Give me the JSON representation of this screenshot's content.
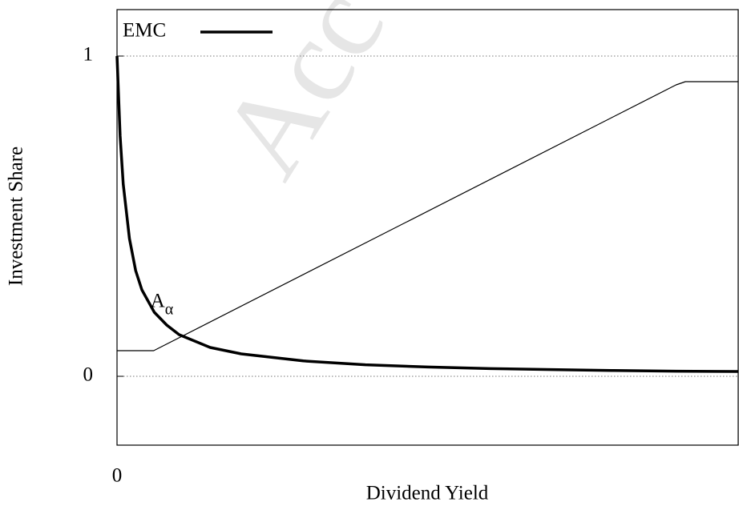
{
  "chart_data": {
    "type": "line",
    "xlabel": "Dividend Yield",
    "ylabel": "Investment Share",
    "watermark": "Acc",
    "annotation": {
      "text": "A",
      "subscript": "α",
      "x": 0.09,
      "y": 0.2
    },
    "series": [
      {
        "name": "EMC",
        "color": "#000000",
        "width": 3.5,
        "x": [
          0,
          0.005,
          0.01,
          0.02,
          0.03,
          0.04,
          0.06,
          0.08,
          0.1,
          0.15,
          0.2,
          0.3,
          0.4,
          0.5,
          0.6,
          0.7,
          0.8,
          0.9,
          1.0
        ],
        "values": [
          1,
          0.75,
          0.6,
          0.43,
          0.33,
          0.27,
          0.2,
          0.16,
          0.13,
          0.09,
          0.07,
          0.048,
          0.036,
          0.029,
          0.024,
          0.021,
          0.018,
          0.016,
          0.015
        ]
      },
      {
        "color": "#000000",
        "width": 1.2,
        "x": [
          0,
          0.059,
          0.9,
          0.915,
          1.0
        ],
        "values": [
          0.08,
          0.08,
          0.91,
          0.92,
          0.92
        ]
      }
    ],
    "xlim": [
      0,
      1
    ],
    "ylim": [
      -0.215,
      1.145
    ],
    "xticks": [
      0
    ],
    "yticks": [
      0,
      1
    ],
    "grid": true,
    "legend": "upper-left"
  }
}
